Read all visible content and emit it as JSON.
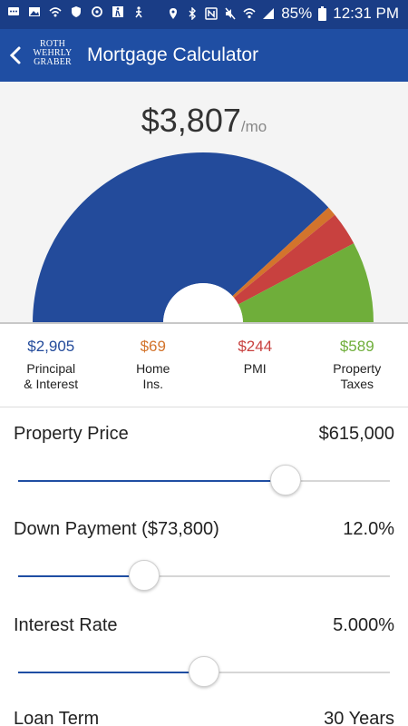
{
  "status_bar": {
    "battery_percent": "85%",
    "time": "12:31 PM",
    "left_icons": [
      "chat-icon",
      "image-icon",
      "vpn-icon",
      "shield-icon",
      "sync-icon",
      "walk-icon",
      "person-icon"
    ],
    "right_icons": [
      "location-icon",
      "bluetooth-icon",
      "nfc-icon",
      "mute-icon",
      "wifi-icon",
      "signal-icon",
      "battery-icon"
    ]
  },
  "app_bar": {
    "logo_lines": [
      "ROTH",
      "WEHRLY",
      "GRABER"
    ],
    "title": "Mortgage Calculator"
  },
  "summary": {
    "total": "$3,807",
    "unit": "/mo"
  },
  "breakdown": [
    {
      "value": "$2,905",
      "label": "Principal\n& Interest",
      "amount": 2905,
      "color": "#234b9b"
    },
    {
      "value": "$69",
      "label": "Home\nIns.",
      "amount": 69,
      "color": "#d3742c"
    },
    {
      "value": "$244",
      "label": "PMI",
      "amount": 244,
      "color": "#c8413f"
    },
    {
      "value": "$589",
      "label": "Property\nTaxes",
      "amount": 589,
      "color": "#6fae3a"
    }
  ],
  "accent_color": "#1f4ea3",
  "inputs": [
    {
      "label": "Property Price",
      "value": "$615,000",
      "level": 0.72
    },
    {
      "label": "Down Payment ($73,800)",
      "value": "12.0%",
      "level": 0.34
    },
    {
      "label": "Interest Rate",
      "value": "5.000%",
      "level": 0.5
    },
    {
      "label": "Loan Term",
      "value": "30 Years",
      "level": null
    }
  ]
}
